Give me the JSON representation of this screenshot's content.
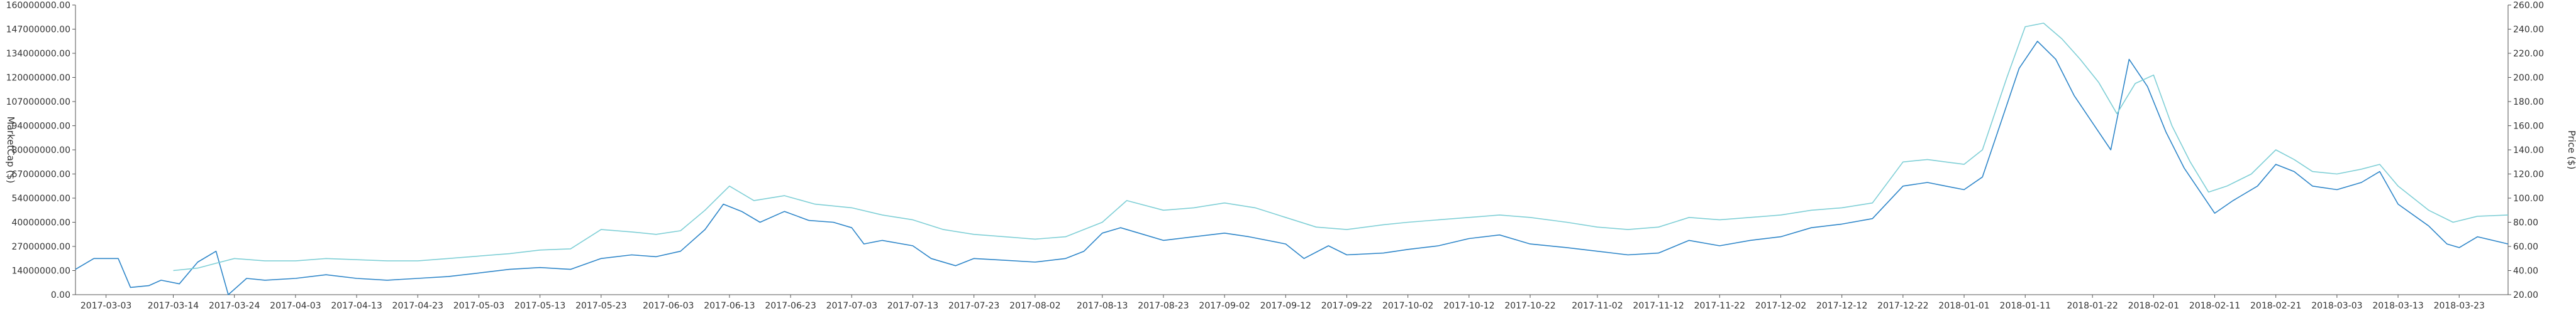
{
  "chart_data": {
    "type": "line",
    "ylabel_left": "MarketCap ($)",
    "ylabel_right": "Price ($)",
    "x_ticks": [
      "2017-03-03",
      "2017-03-14",
      "2017-03-24",
      "2017-04-03",
      "2017-04-13",
      "2017-04-23",
      "2017-05-03",
      "2017-05-13",
      "2017-05-23",
      "2017-06-03",
      "2017-06-13",
      "2017-06-23",
      "2017-07-03",
      "2017-07-13",
      "2017-07-23",
      "2017-08-02",
      "2017-08-13",
      "2017-08-23",
      "2017-09-02",
      "2017-09-12",
      "2017-09-22",
      "2017-10-02",
      "2017-10-12",
      "2017-10-22",
      "2017-11-02",
      "2017-11-12",
      "2017-11-22",
      "2017-12-02",
      "2017-12-12",
      "2017-12-22",
      "2018-01-01",
      "2018-01-11",
      "2018-01-22",
      "2018-02-01",
      "2018-02-11",
      "2018-02-21",
      "2018-03-03",
      "2018-03-13",
      "2018-03-23"
    ],
    "y_left_ticks": [
      "0.00",
      "14000000.00",
      "27000000.00",
      "40000000.00",
      "54000000.00",
      "67000000.00",
      "80000000.00",
      "94000000.00",
      "107000000.00",
      "120000000.00",
      "134000000.00",
      "147000000.00",
      "160000000.00"
    ],
    "y_right_ticks": [
      "20.00",
      "40.00",
      "60.00",
      "80.00",
      "100.00",
      "120.00",
      "140.00",
      "160.00",
      "180.00",
      "200.00",
      "220.00",
      "240.00",
      "260.00"
    ],
    "ylim_left": [
      0,
      160000000
    ],
    "ylim_right": [
      20,
      260
    ],
    "xlim": [
      "2017-02-26",
      "2018-03-31"
    ],
    "grid": false,
    "series": [
      {
        "axis": "left",
        "color": "#2e86c9",
        "points": [
          [
            "2017-02-26",
            14000000
          ],
          [
            "2017-03-01",
            20000000
          ],
          [
            "2017-03-05",
            20000000
          ],
          [
            "2017-03-07",
            4000000
          ],
          [
            "2017-03-10",
            5000000
          ],
          [
            "2017-03-12",
            8000000
          ],
          [
            "2017-03-15",
            6000000
          ],
          [
            "2017-03-18",
            18000000
          ],
          [
            "2017-03-21",
            24000000
          ],
          [
            "2017-03-23",
            0
          ],
          [
            "2017-03-26",
            9000000
          ],
          [
            "2017-03-29",
            8000000
          ],
          [
            "2017-04-03",
            9000000
          ],
          [
            "2017-04-08",
            11000000
          ],
          [
            "2017-04-13",
            9000000
          ],
          [
            "2017-04-18",
            8000000
          ],
          [
            "2017-04-23",
            9000000
          ],
          [
            "2017-04-28",
            10000000
          ],
          [
            "2017-05-03",
            12000000
          ],
          [
            "2017-05-08",
            14000000
          ],
          [
            "2017-05-13",
            15000000
          ],
          [
            "2017-05-18",
            14000000
          ],
          [
            "2017-05-23",
            20000000
          ],
          [
            "2017-05-28",
            22000000
          ],
          [
            "2017-06-01",
            21000000
          ],
          [
            "2017-06-05",
            24000000
          ],
          [
            "2017-06-09",
            36000000
          ],
          [
            "2017-06-12",
            50000000
          ],
          [
            "2017-06-15",
            46000000
          ],
          [
            "2017-06-18",
            40000000
          ],
          [
            "2017-06-22",
            46000000
          ],
          [
            "2017-06-26",
            41000000
          ],
          [
            "2017-06-30",
            40000000
          ],
          [
            "2017-07-03",
            37000000
          ],
          [
            "2017-07-05",
            28000000
          ],
          [
            "2017-07-08",
            30000000
          ],
          [
            "2017-07-13",
            27000000
          ],
          [
            "2017-07-16",
            20000000
          ],
          [
            "2017-07-20",
            16000000
          ],
          [
            "2017-07-23",
            20000000
          ],
          [
            "2017-07-28",
            19000000
          ],
          [
            "2017-08-02",
            18000000
          ],
          [
            "2017-08-07",
            20000000
          ],
          [
            "2017-08-10",
            24000000
          ],
          [
            "2017-08-13",
            34000000
          ],
          [
            "2017-08-16",
            37000000
          ],
          [
            "2017-08-19",
            34000000
          ],
          [
            "2017-08-23",
            30000000
          ],
          [
            "2017-08-28",
            32000000
          ],
          [
            "2017-09-02",
            34000000
          ],
          [
            "2017-09-06",
            32000000
          ],
          [
            "2017-09-12",
            28000000
          ],
          [
            "2017-09-15",
            20000000
          ],
          [
            "2017-09-19",
            27000000
          ],
          [
            "2017-09-22",
            22000000
          ],
          [
            "2017-09-28",
            23000000
          ],
          [
            "2017-10-02",
            25000000
          ],
          [
            "2017-10-07",
            27000000
          ],
          [
            "2017-10-12",
            31000000
          ],
          [
            "2017-10-17",
            33000000
          ],
          [
            "2017-10-22",
            28000000
          ],
          [
            "2017-10-28",
            26000000
          ],
          [
            "2017-11-02",
            24000000
          ],
          [
            "2017-11-07",
            22000000
          ],
          [
            "2017-11-12",
            23000000
          ],
          [
            "2017-11-17",
            30000000
          ],
          [
            "2017-11-22",
            27000000
          ],
          [
            "2017-11-27",
            30000000
          ],
          [
            "2017-12-02",
            32000000
          ],
          [
            "2017-12-07",
            37000000
          ],
          [
            "2017-12-12",
            39000000
          ],
          [
            "2017-12-17",
            42000000
          ],
          [
            "2017-12-22",
            60000000
          ],
          [
            "2017-12-26",
            62000000
          ],
          [
            "2017-12-29",
            60000000
          ],
          [
            "2018-01-01",
            58000000
          ],
          [
            "2018-01-04",
            65000000
          ],
          [
            "2018-01-07",
            95000000
          ],
          [
            "2018-01-10",
            125000000
          ],
          [
            "2018-01-13",
            140000000
          ],
          [
            "2018-01-16",
            130000000
          ],
          [
            "2018-01-19",
            110000000
          ],
          [
            "2018-01-22",
            95000000
          ],
          [
            "2018-01-25",
            80000000
          ],
          [
            "2018-01-28",
            130000000
          ],
          [
            "2018-01-31",
            115000000
          ],
          [
            "2018-02-03",
            90000000
          ],
          [
            "2018-02-06",
            70000000
          ],
          [
            "2018-02-09",
            55000000
          ],
          [
            "2018-02-11",
            45000000
          ],
          [
            "2018-02-14",
            52000000
          ],
          [
            "2018-02-18",
            60000000
          ],
          [
            "2018-02-21",
            72000000
          ],
          [
            "2018-02-24",
            68000000
          ],
          [
            "2018-02-27",
            60000000
          ],
          [
            "2018-03-03",
            58000000
          ],
          [
            "2018-03-07",
            62000000
          ],
          [
            "2018-03-10",
            68000000
          ],
          [
            "2018-03-13",
            50000000
          ],
          [
            "2018-03-18",
            38000000
          ],
          [
            "2018-03-21",
            28000000
          ],
          [
            "2018-03-23",
            26000000
          ],
          [
            "2018-03-26",
            32000000
          ],
          [
            "2018-03-31",
            28000000
          ]
        ]
      },
      {
        "axis": "right",
        "color": "#7fcfd6",
        "points": [
          [
            "2017-03-14",
            40
          ],
          [
            "2017-03-18",
            42
          ],
          [
            "2017-03-21",
            46
          ],
          [
            "2017-03-24",
            50
          ],
          [
            "2017-03-29",
            48
          ],
          [
            "2017-04-03",
            48
          ],
          [
            "2017-04-08",
            50
          ],
          [
            "2017-04-13",
            49
          ],
          [
            "2017-04-18",
            48
          ],
          [
            "2017-04-23",
            48
          ],
          [
            "2017-04-28",
            50
          ],
          [
            "2017-05-03",
            52
          ],
          [
            "2017-05-08",
            54
          ],
          [
            "2017-05-13",
            57
          ],
          [
            "2017-05-18",
            58
          ],
          [
            "2017-05-23",
            74
          ],
          [
            "2017-05-28",
            72
          ],
          [
            "2017-06-01",
            70
          ],
          [
            "2017-06-05",
            73
          ],
          [
            "2017-06-09",
            90
          ],
          [
            "2017-06-13",
            110
          ],
          [
            "2017-06-17",
            98
          ],
          [
            "2017-06-22",
            102
          ],
          [
            "2017-06-27",
            95
          ],
          [
            "2017-07-03",
            92
          ],
          [
            "2017-07-08",
            86
          ],
          [
            "2017-07-13",
            82
          ],
          [
            "2017-07-18",
            74
          ],
          [
            "2017-07-23",
            70
          ],
          [
            "2017-07-28",
            68
          ],
          [
            "2017-08-02",
            66
          ],
          [
            "2017-08-07",
            68
          ],
          [
            "2017-08-13",
            80
          ],
          [
            "2017-08-17",
            98
          ],
          [
            "2017-08-23",
            90
          ],
          [
            "2017-08-28",
            92
          ],
          [
            "2017-09-02",
            96
          ],
          [
            "2017-09-07",
            92
          ],
          [
            "2017-09-12",
            84
          ],
          [
            "2017-09-17",
            76
          ],
          [
            "2017-09-22",
            74
          ],
          [
            "2017-09-28",
            78
          ],
          [
            "2017-10-02",
            80
          ],
          [
            "2017-10-07",
            82
          ],
          [
            "2017-10-12",
            84
          ],
          [
            "2017-10-17",
            86
          ],
          [
            "2017-10-22",
            84
          ],
          [
            "2017-10-28",
            80
          ],
          [
            "2017-11-02",
            76
          ],
          [
            "2017-11-07",
            74
          ],
          [
            "2017-11-12",
            76
          ],
          [
            "2017-11-17",
            84
          ],
          [
            "2017-11-22",
            82
          ],
          [
            "2017-11-27",
            84
          ],
          [
            "2017-12-02",
            86
          ],
          [
            "2017-12-07",
            90
          ],
          [
            "2017-12-12",
            92
          ],
          [
            "2017-12-17",
            96
          ],
          [
            "2017-12-22",
            130
          ],
          [
            "2017-12-26",
            132
          ],
          [
            "2017-12-29",
            130
          ],
          [
            "2018-01-01",
            128
          ],
          [
            "2018-01-04",
            140
          ],
          [
            "2018-01-08",
            200
          ],
          [
            "2018-01-11",
            242
          ],
          [
            "2018-01-14",
            245
          ],
          [
            "2018-01-17",
            232
          ],
          [
            "2018-01-20",
            215
          ],
          [
            "2018-01-23",
            196
          ],
          [
            "2018-01-26",
            170
          ],
          [
            "2018-01-29",
            195
          ],
          [
            "2018-02-01",
            202
          ],
          [
            "2018-02-04",
            160
          ],
          [
            "2018-02-07",
            130
          ],
          [
            "2018-02-10",
            105
          ],
          [
            "2018-02-13",
            110
          ],
          [
            "2018-02-17",
            120
          ],
          [
            "2018-02-21",
            140
          ],
          [
            "2018-02-24",
            132
          ],
          [
            "2018-02-27",
            122
          ],
          [
            "2018-03-03",
            120
          ],
          [
            "2018-03-07",
            124
          ],
          [
            "2018-03-10",
            128
          ],
          [
            "2018-03-13",
            110
          ],
          [
            "2018-03-18",
            90
          ],
          [
            "2018-03-22",
            80
          ],
          [
            "2018-03-26",
            85
          ],
          [
            "2018-03-31",
            86
          ]
        ]
      }
    ]
  }
}
